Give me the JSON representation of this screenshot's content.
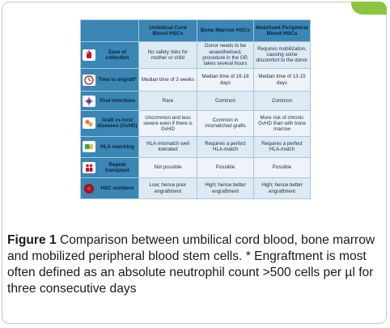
{
  "table": {
    "columns": [
      "Umbilical Cord Blood HSCs",
      "Bone Marrow HSCs",
      "Mobilised Peripheral Blood HSCs"
    ],
    "rows": [
      {
        "icon": "blood-bag-icon",
        "label": "Ease of collection",
        "cells": [
          "No safety risks for mother or child",
          "Donor needs to be anaesthetised, procedure in the OP, takes several hours",
          "Requires mobilization, causing some discomfort to the donor"
        ]
      },
      {
        "icon": "clock-icon",
        "label": "Time to engraft*",
        "cells": [
          "Median time of 3 weeks",
          "Median time of 16-18 days",
          "Median time of 13-15 days"
        ]
      },
      {
        "icon": "virus-icon",
        "label": "Viral infections",
        "cells": [
          "Rare",
          "Common",
          "Common"
        ]
      },
      {
        "icon": "cells-icon",
        "label": "Graft vs host diseases (GvHD)",
        "cells": [
          "Uncommon and less severe even if there is GvHD",
          "Common in mismatched grafts",
          "More risk of chronic GvHD than with bone marrow"
        ]
      },
      {
        "icon": "puzzle-icon",
        "label": "HLA matching",
        "cells": [
          "HLA-mismatch well tolerated",
          "Requires a perfect HLA-match",
          "Requires a perfect HLA-match"
        ]
      },
      {
        "icon": "people-icon",
        "label": "Repeat transplant",
        "cells": [
          "Not possible",
          "Possible",
          "Possible"
        ]
      },
      {
        "icon": "red-cell-icon",
        "label": "HSC numbers",
        "cells": [
          "Low; hence poor engraftment",
          "High; hence better engraftment",
          "High; hence better engraftment"
        ]
      }
    ]
  },
  "caption": {
    "label": "Figure 1",
    "text": " Comparison between umbilical cord blood, bone marrow and mobilized peripheral blood stem cells. * Engraftment is most often defined as an absolute neutrophil count >500 cells per µl for three consecutive days"
  },
  "colors": {
    "header_bg": "#3a86b4",
    "cell_light": "#dde9f3",
    "cell_pale": "#edf3f8",
    "accent_tab": "#8cc63f"
  }
}
